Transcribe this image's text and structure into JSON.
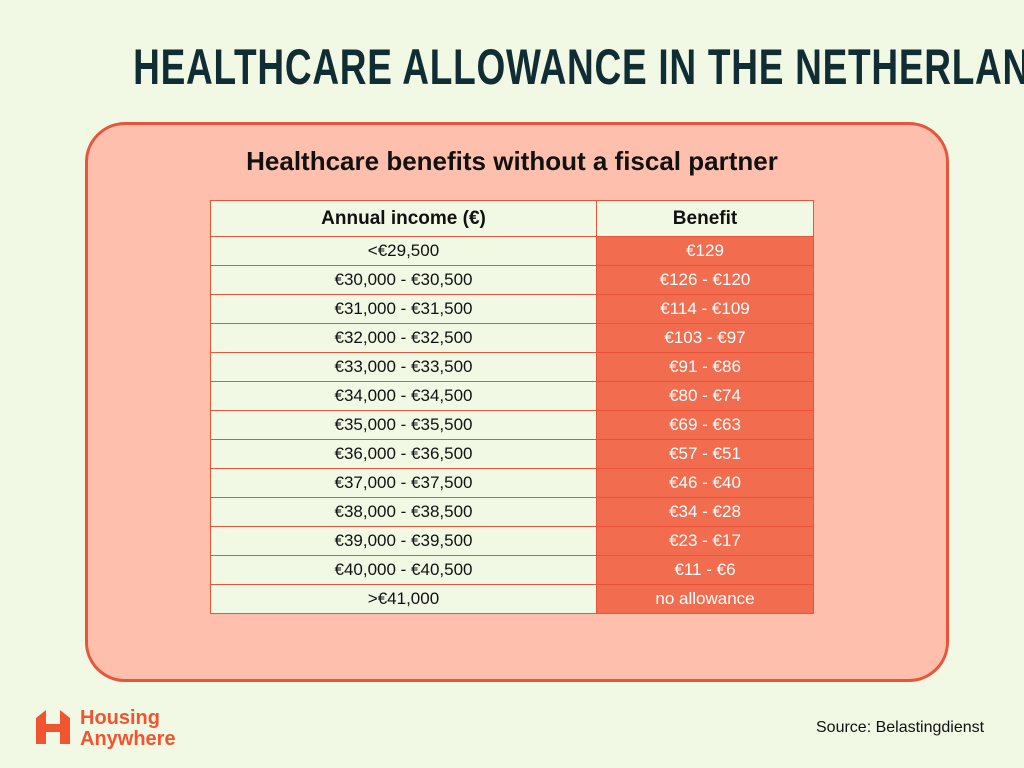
{
  "header": {
    "title": "HEALTHCARE ALLOWANCE IN THE NETHERLANDS"
  },
  "card": {
    "subtitle": "Healthcare benefits without a fiscal partner"
  },
  "table": {
    "headers": [
      "Annual income (€)",
      "Benefit"
    ],
    "rows": [
      [
        "<€29,500",
        "€129"
      ],
      [
        "€30,000 - €30,500",
        "€126 - €120"
      ],
      [
        "€31,000 - €31,500",
        "€114 - €109"
      ],
      [
        "€32,000 - €32,500",
        "€103 - €97"
      ],
      [
        "€33,000 - €33,500",
        "€91 - €86"
      ],
      [
        "€34,000 - €34,500",
        "€80 - €74"
      ],
      [
        "€35,000 - €35,500",
        "€69 - €63"
      ],
      [
        "€36,000 - €36,500",
        "€57 - €51"
      ],
      [
        "€37,000 - €37,500",
        "€46 - €40"
      ],
      [
        "€38,000 - €38,500",
        "€34 - €28"
      ],
      [
        "€39,000 - €39,500",
        "€23 - €17"
      ],
      [
        "€40,000 - €40,500",
        "€11 - €6"
      ],
      [
        ">€41,000",
        "no allowance"
      ]
    ]
  },
  "logo": {
    "line1": "Housing",
    "line2": "Anywhere"
  },
  "footer": {
    "source": "Source: Belastingdienst"
  }
}
